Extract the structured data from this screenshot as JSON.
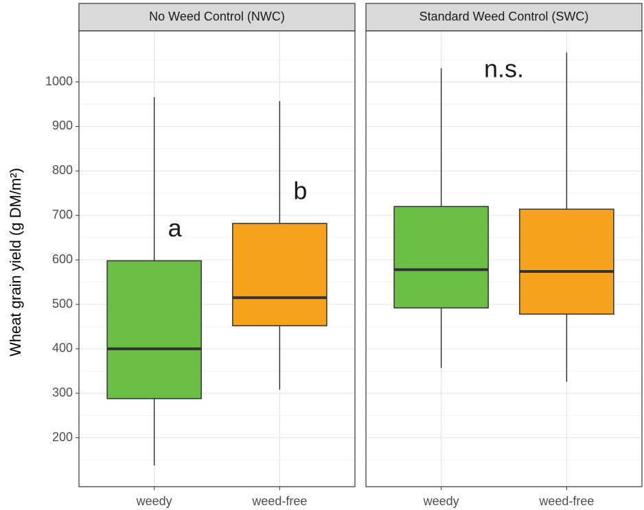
{
  "chart_data": [
    {
      "type": "box",
      "title": "No Weed Control (NWC)",
      "y_label": "Wheat grain yield (g DM/m²)",
      "categories": [
        "weedy",
        "weed-free"
      ],
      "colors": [
        "#6abd45",
        "#f6a21d"
      ],
      "min": [
        138,
        308
      ],
      "q1": [
        288,
        452
      ],
      "median": [
        400,
        515
      ],
      "q3": [
        598,
        682
      ],
      "max": [
        966,
        957
      ],
      "annotations": [
        "a",
        "b"
      ],
      "ylim": [
        90,
        1115
      ],
      "yticks": [
        200,
        300,
        400,
        500,
        600,
        700,
        800,
        900,
        1000
      ],
      "grid": true
    },
    {
      "type": "box",
      "title": "Standard Weed Control (SWC)",
      "categories": [
        "weedy",
        "weed-free"
      ],
      "colors": [
        "#6abd45",
        "#f6a21d"
      ],
      "min": [
        357,
        326
      ],
      "q1": [
        492,
        478
      ],
      "median": [
        578,
        574
      ],
      "q3": [
        720,
        714
      ],
      "max": [
        1031,
        1066
      ],
      "annotation": "n.s.",
      "ylim": [
        90,
        1115
      ],
      "yticks": [
        200,
        300,
        400,
        500,
        600,
        700,
        800,
        900,
        1000
      ],
      "grid": true
    }
  ]
}
